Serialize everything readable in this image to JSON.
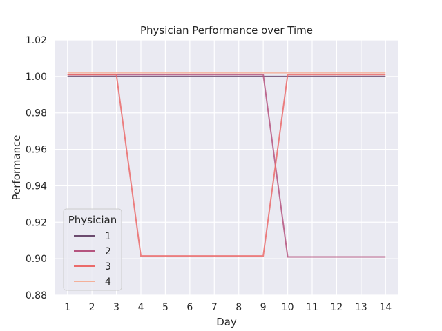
{
  "chart_data": {
    "type": "line",
    "title": "Physician Performance over Time",
    "xlabel": "Day",
    "ylabel": "Performance",
    "x": [
      1,
      2,
      3,
      4,
      5,
      6,
      7,
      8,
      9,
      10,
      11,
      12,
      13,
      14
    ],
    "xlim": [
      0.5,
      14.5
    ],
    "ylim": [
      0.88,
      1.02
    ],
    "xticks": [
      1,
      2,
      3,
      4,
      5,
      6,
      7,
      8,
      9,
      10,
      11,
      12,
      13,
      14
    ],
    "yticks": [
      0.88,
      0.9,
      0.92,
      0.94,
      0.96,
      0.98,
      1.0,
      1.02
    ],
    "grid": true,
    "legend": {
      "title": "Physician",
      "placement": "lower-left"
    },
    "series": [
      {
        "name": "1",
        "color": "#6b4a6e",
        "values": [
          1.0,
          1.0,
          1.0,
          1.0,
          1.0,
          1.0,
          1.0,
          1.0,
          1.0,
          1.0,
          1.0,
          1.0,
          1.0,
          1.0
        ]
      },
      {
        "name": "2",
        "color": "#b5547f",
        "values": [
          1.001,
          1.001,
          1.001,
          1.001,
          1.001,
          1.001,
          1.001,
          1.001,
          1.001,
          0.901,
          0.901,
          0.901,
          0.901,
          0.901
        ]
      },
      {
        "name": "3",
        "color": "#eb6a6a",
        "values": [
          1.001,
          1.001,
          1.001,
          0.9015,
          0.9015,
          0.9015,
          0.9015,
          0.9015,
          0.9015,
          1.001,
          1.001,
          1.001,
          1.001,
          1.001
        ]
      },
      {
        "name": "4",
        "color": "#f4b09a",
        "values": [
          1.002,
          1.002,
          1.002,
          1.002,
          1.002,
          1.002,
          1.002,
          1.002,
          1.002,
          1.002,
          1.002,
          1.002,
          1.002,
          1.002
        ]
      }
    ]
  }
}
